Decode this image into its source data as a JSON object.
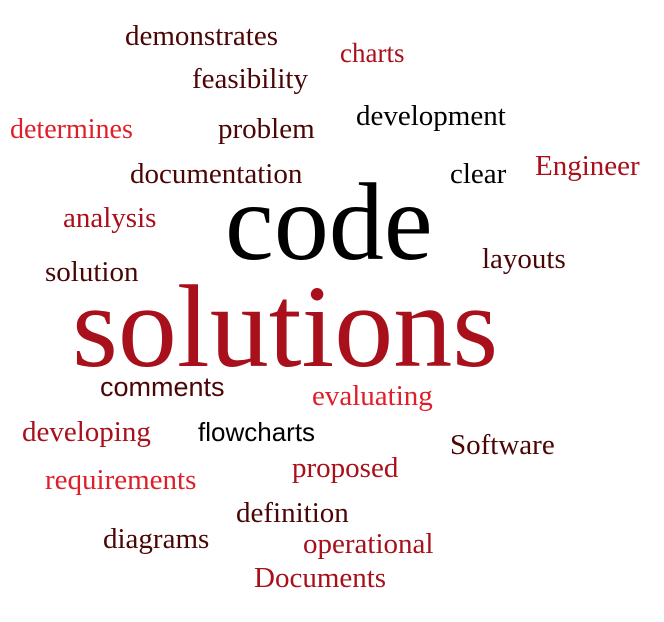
{
  "colors": {
    "black": "#000000",
    "maroon": "#4a0505",
    "dark_red": "#a8101b",
    "red": "#e01e2a"
  },
  "words": {
    "demonstrates": "demonstrates",
    "charts": "charts",
    "feasibility": "feasibility",
    "determines": "determines",
    "problem": "problem",
    "development": "development",
    "documentation": "documentation",
    "clear": "clear",
    "engineer": "Engineer",
    "analysis": "analysis",
    "code": "code",
    "solution": "solution",
    "layouts": "layouts",
    "solutions": "solutions",
    "comments": "comments",
    "evaluating": "evaluating",
    "developing": "developing",
    "flowcharts": "flowcharts",
    "software": "Software",
    "requirements": "requirements",
    "proposed": "proposed",
    "definition": "definition",
    "diagrams": "diagrams",
    "operational": "operational",
    "documents": "Documents"
  }
}
